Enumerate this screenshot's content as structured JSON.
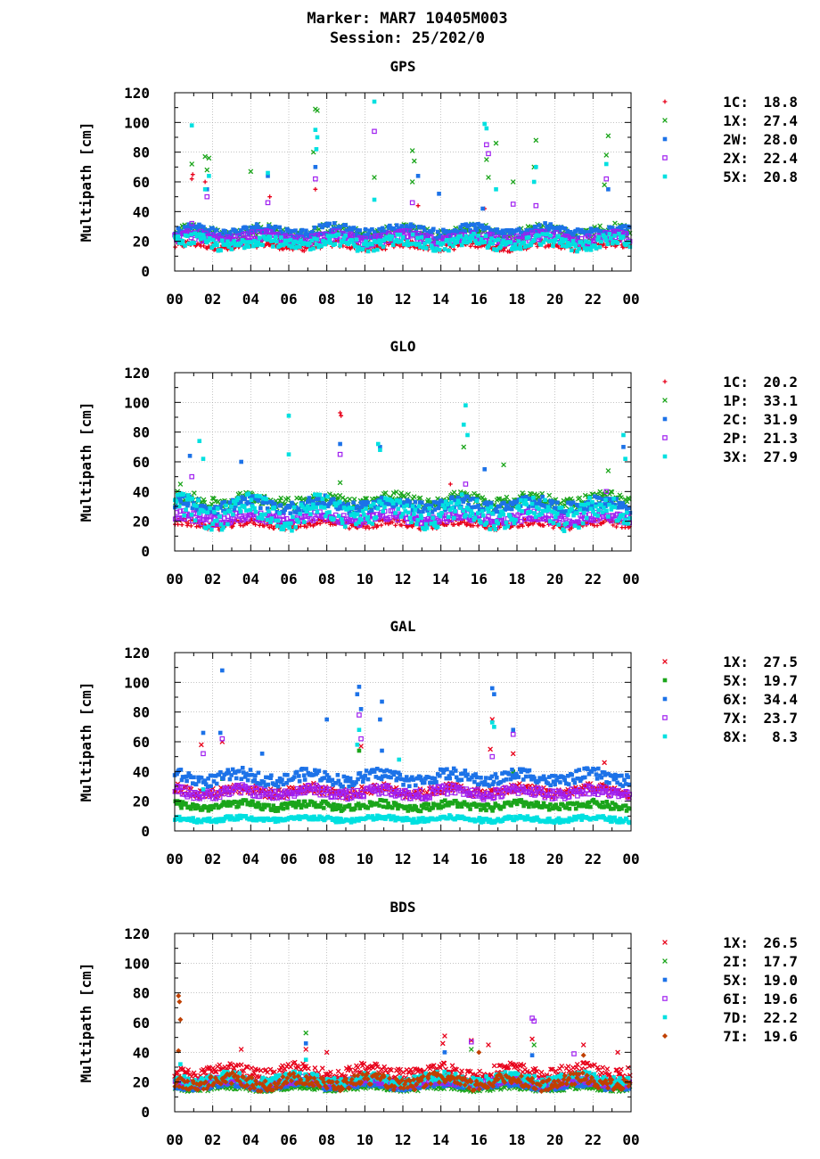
{
  "header": {
    "marker_line": "Marker: MAR7 10405M003",
    "session_line": "Session: 25/202/0"
  },
  "symbols": {
    "1C": "plus",
    "1X": "cross",
    "2W": "square",
    "2X": "square-open",
    "5X": "square",
    "1P": "cross",
    "2C": "square",
    "2P": "square-open",
    "3X": "square",
    "6X": "square",
    "7X": "square-open",
    "8X": "square",
    "2I": "cross",
    "6I": "square-open",
    "7D": "square",
    "7I": "diamond"
  },
  "chart_data": [
    {
      "type": "scatter",
      "title": "GPS",
      "ylabel": "Multipath [cm]",
      "xlabel": "",
      "ylim": [
        0,
        120
      ],
      "xlim": [
        0,
        24
      ],
      "y_ticks": [
        "0",
        "20",
        "40",
        "60",
        "80",
        "100",
        "120"
      ],
      "x_ticks": [
        "00",
        "02",
        "04",
        "06",
        "08",
        "10",
        "12",
        "14",
        "16",
        "18",
        "20",
        "22",
        "00"
      ],
      "grid": true,
      "legend_position": "right",
      "series": [
        {
          "name": "1C",
          "value": "18.8",
          "color": "#e8001a",
          "base": 17,
          "spread": 3,
          "spikes": [
            [
              0.9,
              62
            ],
            [
              0.95,
              65
            ],
            [
              1.6,
              60
            ],
            [
              5.0,
              50
            ],
            [
              7.4,
              55
            ],
            [
              12.8,
              44
            ],
            [
              16.3,
              42
            ]
          ]
        },
        {
          "name": "1X",
          "value": "27.4",
          "color": "#1aa51a",
          "base": 26,
          "spread": 5,
          "spikes": [
            [
              0.9,
              72
            ],
            [
              1.6,
              77
            ],
            [
              1.8,
              76
            ],
            [
              1.7,
              68
            ],
            [
              4.0,
              67
            ],
            [
              7.4,
              109
            ],
            [
              7.5,
              108
            ],
            [
              7.3,
              80
            ],
            [
              10.5,
              63
            ],
            [
              12.5,
              81
            ],
            [
              12.6,
              74
            ],
            [
              12.5,
              60
            ],
            [
              16.4,
              75
            ],
            [
              16.5,
              63
            ],
            [
              16.9,
              86
            ],
            [
              17.8,
              60
            ],
            [
              19.0,
              88
            ],
            [
              18.9,
              70
            ],
            [
              22.8,
              91
            ],
            [
              22.7,
              78
            ],
            [
              22.6,
              58
            ]
          ]
        },
        {
          "name": "2W",
          "value": "28.0",
          "color": "#1c72e8",
          "base": 27,
          "spread": 4,
          "spikes": [
            [
              1.7,
              55
            ],
            [
              4.9,
              64
            ],
            [
              7.4,
              70
            ],
            [
              12.8,
              64
            ],
            [
              13.9,
              52
            ],
            [
              16.2,
              42
            ],
            [
              22.8,
              55
            ]
          ]
        },
        {
          "name": "2X",
          "value": "22.4",
          "color": "#a020f0",
          "base": 22,
          "spread": 4,
          "spikes": [
            [
              0.9,
              32
            ],
            [
              1.7,
              50
            ],
            [
              4.9,
              46
            ],
            [
              7.4,
              62
            ],
            [
              10.5,
              94
            ],
            [
              12.5,
              46
            ],
            [
              16.4,
              85
            ],
            [
              16.5,
              79
            ],
            [
              17.8,
              45
            ],
            [
              19.0,
              44
            ],
            [
              22.7,
              62
            ]
          ]
        },
        {
          "name": "5X",
          "value": "20.8",
          "color": "#00e0e0",
          "base": 19,
          "spread": 5,
          "spikes": [
            [
              0.9,
              98
            ],
            [
              1.6,
              55
            ],
            [
              1.8,
              64
            ],
            [
              4.9,
              66
            ],
            [
              7.4,
              95
            ],
            [
              7.5,
              90
            ],
            [
              7.45,
              82
            ],
            [
              10.5,
              114
            ],
            [
              10.5,
              48
            ],
            [
              16.3,
              99
            ],
            [
              16.4,
              96
            ],
            [
              16.9,
              55
            ],
            [
              19.0,
              70
            ],
            [
              18.9,
              60
            ],
            [
              22.7,
              72
            ]
          ]
        }
      ]
    },
    {
      "type": "scatter",
      "title": "GLO",
      "ylabel": "Multipath [cm]",
      "xlabel": "",
      "ylim": [
        0,
        120
      ],
      "xlim": [
        0,
        24
      ],
      "y_ticks": [
        "0",
        "20",
        "40",
        "60",
        "80",
        "100",
        "120"
      ],
      "x_ticks": [
        "00",
        "02",
        "04",
        "06",
        "08",
        "10",
        "12",
        "14",
        "16",
        "18",
        "20",
        "22",
        "00"
      ],
      "grid": true,
      "legend_position": "right",
      "series": [
        {
          "name": "1C",
          "value": "20.2",
          "color": "#e8001a",
          "base": 18,
          "spread": 3,
          "spikes": [
            [
              8.7,
              93
            ],
            [
              8.75,
              91
            ],
            [
              14.5,
              45
            ],
            [
              1.0,
              30
            ]
          ]
        },
        {
          "name": "1P",
          "value": "33.1",
          "color": "#1aa51a",
          "base": 34,
          "spread": 5,
          "spikes": [
            [
              0.3,
              45
            ],
            [
              15.2,
              70
            ],
            [
              17.3,
              58
            ],
            [
              22.8,
              54
            ],
            [
              8.7,
              46
            ]
          ]
        },
        {
          "name": "2C",
          "value": "31.9",
          "color": "#1c72e8",
          "base": 31,
          "spread": 5,
          "spikes": [
            [
              0.8,
              64
            ],
            [
              3.5,
              60
            ],
            [
              8.7,
              72
            ],
            [
              10.8,
              70
            ],
            [
              16.3,
              55
            ],
            [
              23.6,
              70
            ]
          ]
        },
        {
          "name": "2P",
          "value": "21.3",
          "color": "#a020f0",
          "base": 22,
          "spread": 4,
          "spikes": [
            [
              0.9,
              50
            ],
            [
              8.7,
              65
            ],
            [
              15.3,
              45
            ],
            [
              22.7,
              40
            ]
          ]
        },
        {
          "name": "3X",
          "value": "27.9",
          "color": "#00e0e0",
          "base": 26,
          "spread": 10,
          "spikes": [
            [
              1.3,
              74
            ],
            [
              1.5,
              62
            ],
            [
              6.0,
              91
            ],
            [
              6.0,
              65
            ],
            [
              10.7,
              72
            ],
            [
              10.8,
              68
            ],
            [
              15.3,
              98
            ],
            [
              15.2,
              85
            ],
            [
              15.4,
              78
            ],
            [
              23.6,
              78
            ],
            [
              23.7,
              62
            ]
          ]
        }
      ]
    },
    {
      "type": "scatter",
      "title": "GAL",
      "ylabel": "Multipath [cm]",
      "xlabel": "",
      "ylim": [
        0,
        120
      ],
      "xlim": [
        0,
        24
      ],
      "y_ticks": [
        "0",
        "20",
        "40",
        "60",
        "80",
        "100",
        "120"
      ],
      "x_ticks": [
        "00",
        "02",
        "04",
        "06",
        "08",
        "10",
        "12",
        "14",
        "16",
        "18",
        "20",
        "22",
        "00"
      ],
      "grid": true,
      "legend_position": "right",
      "series": [
        {
          "name": "1X",
          "value": "27.5",
          "color": "#e8001a",
          "base": 27,
          "spread": 4,
          "spikes": [
            [
              1.4,
              58
            ],
            [
              2.5,
              60
            ],
            [
              9.8,
              57
            ],
            [
              16.6,
              55
            ],
            [
              16.7,
              75
            ],
            [
              17.8,
              52
            ],
            [
              22.6,
              46
            ]
          ]
        },
        {
          "name": "5X",
          "value": "19.7",
          "color": "#1aa51a",
          "base": 17,
          "spread": 3,
          "spikes": [
            [
              9.7,
              54
            ],
            [
              2.5,
              35
            ],
            [
              17.8,
              40
            ]
          ]
        },
        {
          "name": "6X",
          "value": "34.4",
          "color": "#1c72e8",
          "base": 36,
          "spread": 5,
          "spikes": [
            [
              1.5,
              66
            ],
            [
              2.5,
              108
            ],
            [
              2.4,
              66
            ],
            [
              4.6,
              52
            ],
            [
              8.0,
              75
            ],
            [
              9.7,
              97
            ],
            [
              9.8,
              82
            ],
            [
              9.6,
              92
            ],
            [
              10.9,
              87
            ],
            [
              10.8,
              75
            ],
            [
              10.9,
              54
            ],
            [
              16.7,
              96
            ],
            [
              16.8,
              92
            ],
            [
              17.8,
              68
            ]
          ]
        },
        {
          "name": "7X",
          "value": "23.7",
          "color": "#a020f0",
          "base": 26,
          "spread": 4,
          "spikes": [
            [
              1.5,
              52
            ],
            [
              2.5,
              62
            ],
            [
              9.7,
              78
            ],
            [
              9.8,
              62
            ],
            [
              17.8,
              65
            ],
            [
              16.7,
              50
            ]
          ]
        },
        {
          "name": "8X",
          "value": "8.3",
          "color": "#00e0e0",
          "base": 8,
          "spread": 2,
          "spikes": [
            [
              9.7,
              68
            ],
            [
              9.6,
              58
            ],
            [
              16.7,
              73
            ],
            [
              16.8,
              70
            ],
            [
              11.8,
              48
            ],
            [
              1.5,
              28
            ]
          ]
        }
      ]
    },
    {
      "type": "scatter",
      "title": "BDS",
      "ylabel": "Multipath [cm]",
      "xlabel": "",
      "ylim": [
        0,
        120
      ],
      "xlim": [
        0,
        24
      ],
      "y_ticks": [
        "0",
        "20",
        "40",
        "60",
        "80",
        "100",
        "120"
      ],
      "x_ticks": [
        "00",
        "02",
        "04",
        "06",
        "08",
        "10",
        "12",
        "14",
        "16",
        "18",
        "20",
        "22",
        "00"
      ],
      "grid": true,
      "legend_position": "right",
      "series": [
        {
          "name": "1X",
          "value": "26.5",
          "color": "#e8001a",
          "base": 27,
          "spread": 5,
          "spikes": [
            [
              3.5,
              42
            ],
            [
              6.9,
              42
            ],
            [
              8.0,
              40
            ],
            [
              14.2,
              51
            ],
            [
              14.1,
              46
            ],
            [
              15.6,
              48
            ],
            [
              16.5,
              45
            ],
            [
              18.8,
              49
            ],
            [
              21.5,
              45
            ],
            [
              23.3,
              40
            ]
          ]
        },
        {
          "name": "2I",
          "value": "17.7",
          "color": "#1aa51a",
          "base": 16,
          "spread": 2,
          "spikes": [
            [
              6.9,
              53
            ],
            [
              15.6,
              42
            ],
            [
              18.9,
              45
            ]
          ]
        },
        {
          "name": "5X",
          "value": "19.0",
          "color": "#1c72e8",
          "base": 18,
          "spread": 3,
          "spikes": [
            [
              6.9,
              46
            ],
            [
              14.2,
              40
            ],
            [
              18.8,
              38
            ]
          ]
        },
        {
          "name": "6I",
          "value": "19.6",
          "color": "#a020f0",
          "base": 20,
          "spread": 3,
          "spikes": [
            [
              15.6,
              47
            ],
            [
              18.8,
              63
            ],
            [
              18.9,
              61
            ],
            [
              21.0,
              39
            ]
          ]
        },
        {
          "name": "7D",
          "value": "22.2",
          "color": "#00e0e0",
          "base": 22,
          "spread": 4,
          "spikes": [
            [
              0.3,
              32
            ],
            [
              6.9,
              35
            ]
          ]
        },
        {
          "name": "7I",
          "value": "19.6",
          "color": "#c04000",
          "base": 20,
          "spread": 5,
          "spikes": [
            [
              0.2,
              78
            ],
            [
              0.25,
              74
            ],
            [
              0.3,
              62
            ],
            [
              0.2,
              41
            ],
            [
              16.0,
              40
            ],
            [
              21.5,
              38
            ]
          ]
        }
      ]
    }
  ]
}
